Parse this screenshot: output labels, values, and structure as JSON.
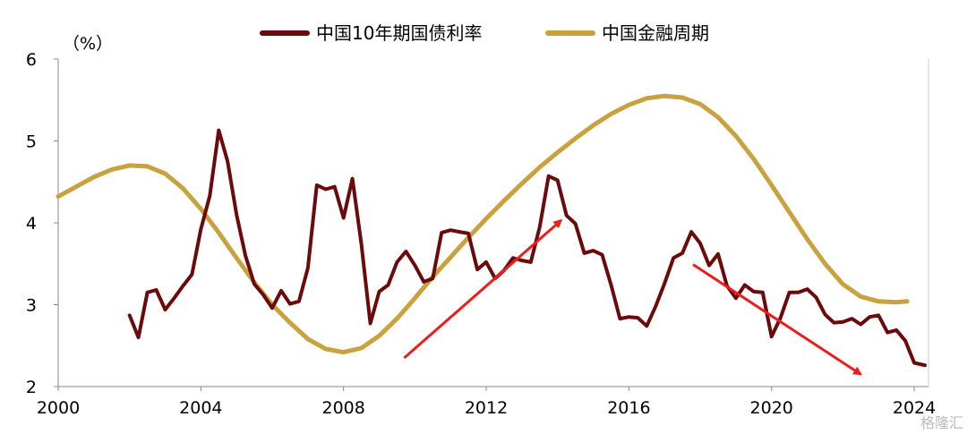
{
  "chart_data": {
    "type": "line",
    "unit_label": "（%）",
    "xlim": [
      2000,
      2024.4
    ],
    "ylim": [
      2,
      6
    ],
    "x_ticks": [
      2000,
      2004,
      2008,
      2012,
      2016,
      2020,
      2024
    ],
    "y_ticks": [
      2,
      3,
      4,
      5,
      6
    ],
    "legend_position": "top-center",
    "grid": false,
    "series": [
      {
        "name": "中国10年期国债利率",
        "color": "#6b0a0a",
        "points": [
          [
            2002.0,
            2.87
          ],
          [
            2002.25,
            2.6
          ],
          [
            2002.5,
            3.15
          ],
          [
            2002.75,
            3.18
          ],
          [
            2003.0,
            2.94
          ],
          [
            2003.25,
            3.08
          ],
          [
            2003.5,
            3.23
          ],
          [
            2003.75,
            3.37
          ],
          [
            2004.0,
            3.92
          ],
          [
            2004.25,
            4.33
          ],
          [
            2004.5,
            5.13
          ],
          [
            2004.75,
            4.75
          ],
          [
            2005.0,
            4.1
          ],
          [
            2005.25,
            3.6
          ],
          [
            2005.5,
            3.25
          ],
          [
            2005.75,
            3.12
          ],
          [
            2006.0,
            2.96
          ],
          [
            2006.25,
            3.17
          ],
          [
            2006.5,
            3.01
          ],
          [
            2006.75,
            3.04
          ],
          [
            2007.0,
            3.45
          ],
          [
            2007.25,
            4.46
          ],
          [
            2007.5,
            4.41
          ],
          [
            2007.75,
            4.44
          ],
          [
            2008.0,
            4.06
          ],
          [
            2008.25,
            4.54
          ],
          [
            2008.5,
            3.74
          ],
          [
            2008.75,
            2.77
          ],
          [
            2009.0,
            3.16
          ],
          [
            2009.25,
            3.24
          ],
          [
            2009.5,
            3.52
          ],
          [
            2009.75,
            3.65
          ],
          [
            2010.0,
            3.48
          ],
          [
            2010.25,
            3.28
          ],
          [
            2010.5,
            3.32
          ],
          [
            2010.75,
            3.88
          ],
          [
            2011.0,
            3.91
          ],
          [
            2011.25,
            3.89
          ],
          [
            2011.5,
            3.87
          ],
          [
            2011.75,
            3.43
          ],
          [
            2012.0,
            3.52
          ],
          [
            2012.25,
            3.32
          ],
          [
            2012.5,
            3.42
          ],
          [
            2012.75,
            3.57
          ],
          [
            2013.0,
            3.54
          ],
          [
            2013.25,
            3.52
          ],
          [
            2013.5,
            3.95
          ],
          [
            2013.75,
            4.57
          ],
          [
            2014.0,
            4.52
          ],
          [
            2014.25,
            4.09
          ],
          [
            2014.5,
            3.99
          ],
          [
            2014.75,
            3.63
          ],
          [
            2015.0,
            3.66
          ],
          [
            2015.25,
            3.61
          ],
          [
            2015.5,
            3.24
          ],
          [
            2015.75,
            2.83
          ],
          [
            2016.0,
            2.85
          ],
          [
            2016.25,
            2.84
          ],
          [
            2016.5,
            2.74
          ],
          [
            2016.75,
            2.98
          ],
          [
            2017.0,
            3.26
          ],
          [
            2017.25,
            3.57
          ],
          [
            2017.5,
            3.63
          ],
          [
            2017.75,
            3.89
          ],
          [
            2018.0,
            3.75
          ],
          [
            2018.25,
            3.48
          ],
          [
            2018.5,
            3.62
          ],
          [
            2018.75,
            3.23
          ],
          [
            2019.0,
            3.08
          ],
          [
            2019.25,
            3.24
          ],
          [
            2019.5,
            3.16
          ],
          [
            2019.75,
            3.15
          ],
          [
            2020.0,
            2.61
          ],
          [
            2020.25,
            2.84
          ],
          [
            2020.5,
            3.15
          ],
          [
            2020.75,
            3.15
          ],
          [
            2021.0,
            3.19
          ],
          [
            2021.25,
            3.09
          ],
          [
            2021.5,
            2.88
          ],
          [
            2021.75,
            2.78
          ],
          [
            2022.0,
            2.79
          ],
          [
            2022.25,
            2.83
          ],
          [
            2022.5,
            2.76
          ],
          [
            2022.75,
            2.85
          ],
          [
            2023.0,
            2.87
          ],
          [
            2023.25,
            2.66
          ],
          [
            2023.5,
            2.69
          ],
          [
            2023.75,
            2.56
          ],
          [
            2024.0,
            2.29
          ],
          [
            2024.3,
            2.26
          ]
        ]
      },
      {
        "name": "中国金融周期",
        "color": "#c9a23e",
        "points": [
          [
            2000.0,
            4.32
          ],
          [
            2000.5,
            4.44
          ],
          [
            2001.0,
            4.56
          ],
          [
            2001.5,
            4.65
          ],
          [
            2002.0,
            4.7
          ],
          [
            2002.5,
            4.69
          ],
          [
            2003.0,
            4.6
          ],
          [
            2003.5,
            4.42
          ],
          [
            2004.0,
            4.17
          ],
          [
            2004.5,
            3.88
          ],
          [
            2005.0,
            3.57
          ],
          [
            2005.5,
            3.27
          ],
          [
            2006.0,
            3.0
          ],
          [
            2006.5,
            2.78
          ],
          [
            2007.0,
            2.58
          ],
          [
            2007.5,
            2.46
          ],
          [
            2008.0,
            2.42
          ],
          [
            2008.5,
            2.47
          ],
          [
            2009.0,
            2.62
          ],
          [
            2009.5,
            2.83
          ],
          [
            2010.0,
            3.08
          ],
          [
            2010.5,
            3.34
          ],
          [
            2011.0,
            3.58
          ],
          [
            2011.5,
            3.82
          ],
          [
            2012.0,
            4.05
          ],
          [
            2012.5,
            4.27
          ],
          [
            2013.0,
            4.48
          ],
          [
            2013.5,
            4.68
          ],
          [
            2014.0,
            4.86
          ],
          [
            2014.5,
            5.03
          ],
          [
            2015.0,
            5.19
          ],
          [
            2015.5,
            5.33
          ],
          [
            2016.0,
            5.44
          ],
          [
            2016.5,
            5.52
          ],
          [
            2017.0,
            5.55
          ],
          [
            2017.5,
            5.53
          ],
          [
            2018.0,
            5.45
          ],
          [
            2018.5,
            5.29
          ],
          [
            2019.0,
            5.06
          ],
          [
            2019.5,
            4.78
          ],
          [
            2020.0,
            4.46
          ],
          [
            2020.5,
            4.13
          ],
          [
            2021.0,
            3.8
          ],
          [
            2021.5,
            3.5
          ],
          [
            2022.0,
            3.25
          ],
          [
            2022.5,
            3.1
          ],
          [
            2023.0,
            3.04
          ],
          [
            2023.5,
            3.03
          ],
          [
            2023.8,
            3.04
          ]
        ]
      }
    ],
    "annotations": [
      {
        "type": "arrow",
        "color": "#ee1c1c",
        "from": [
          2009.7,
          2.35
        ],
        "to": [
          2014.1,
          4.03
        ]
      },
      {
        "type": "arrow",
        "color": "#ee1c1c",
        "from": [
          2017.8,
          3.49
        ],
        "to": [
          2022.5,
          2.15
        ]
      }
    ]
  },
  "watermark": "格隆汇"
}
